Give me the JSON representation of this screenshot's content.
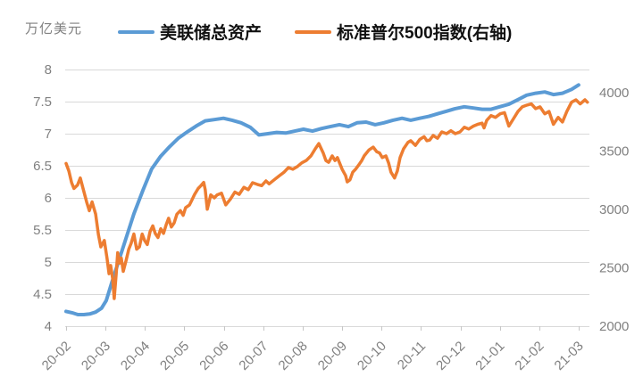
{
  "chart_data": {
    "type": "line",
    "unit_label": "万亿美元",
    "categories": [
      "20-02",
      "20-03",
      "20-04",
      "20-05",
      "20-06",
      "20-07",
      "20-08",
      "20-09",
      "20-10",
      "20-11",
      "20-12",
      "21-01",
      "21-02",
      "21-03"
    ],
    "left_axis": {
      "min": 4,
      "max": 8,
      "tick_step": 0.5,
      "tick_values": [
        4,
        4.5,
        5,
        5.5,
        6,
        6.5,
        7,
        7.5,
        8
      ],
      "tick_labels": [
        "4",
        "4.5",
        "5",
        "5.5",
        "6",
        "6.5",
        "7",
        "7.5",
        "8"
      ]
    },
    "right_axis": {
      "min": 2000,
      "max": 4200,
      "tick_values": [
        2000,
        2500,
        3000,
        3500,
        4000
      ],
      "tick_labels": [
        "2000",
        "2500",
        "3000",
        "3500",
        "4000"
      ]
    },
    "grid_color": "#D9D9D9",
    "axis_line_color": "#D9D9D9",
    "tick_mark_color": "#C6C6C6",
    "axis_text_color": "#808080",
    "legend_position": "top",
    "grid": "horizontal-only",
    "series": [
      {
        "name": "美联储总资产",
        "axis": "left",
        "color": "#5B9BD5",
        "stroke_width": 4,
        "points": [
          [
            0,
            4.23
          ],
          [
            0.15,
            4.21
          ],
          [
            0.3,
            4.18
          ],
          [
            0.45,
            4.18
          ],
          [
            0.6,
            4.19
          ],
          [
            0.75,
            4.22
          ],
          [
            0.9,
            4.28
          ],
          [
            1.02,
            4.4
          ],
          [
            1.16,
            4.68
          ],
          [
            1.3,
            4.95
          ],
          [
            1.5,
            5.33
          ],
          [
            1.72,
            5.75
          ],
          [
            1.95,
            6.12
          ],
          [
            2.17,
            6.45
          ],
          [
            2.4,
            6.65
          ],
          [
            2.63,
            6.8
          ],
          [
            2.85,
            6.93
          ],
          [
            3.08,
            7.03
          ],
          [
            3.3,
            7.12
          ],
          [
            3.53,
            7.2
          ],
          [
            3.76,
            7.22
          ],
          [
            3.99,
            7.24
          ],
          [
            4.21,
            7.21
          ],
          [
            4.44,
            7.17
          ],
          [
            4.67,
            7.1
          ],
          [
            4.89,
            6.98
          ],
          [
            5.12,
            7.0
          ],
          [
            5.34,
            7.02
          ],
          [
            5.57,
            7.01
          ],
          [
            5.8,
            7.04
          ],
          [
            6.02,
            7.07
          ],
          [
            6.25,
            7.04
          ],
          [
            6.48,
            7.08
          ],
          [
            6.7,
            7.11
          ],
          [
            6.93,
            7.14
          ],
          [
            7.16,
            7.11
          ],
          [
            7.38,
            7.17
          ],
          [
            7.61,
            7.18
          ],
          [
            7.84,
            7.14
          ],
          [
            8.06,
            7.17
          ],
          [
            8.29,
            7.21
          ],
          [
            8.52,
            7.24
          ],
          [
            8.74,
            7.21
          ],
          [
            8.97,
            7.24
          ],
          [
            9.2,
            7.27
          ],
          [
            9.42,
            7.31
          ],
          [
            9.65,
            7.35
          ],
          [
            9.87,
            7.39
          ],
          [
            10.1,
            7.42
          ],
          [
            10.33,
            7.4
          ],
          [
            10.55,
            7.38
          ],
          [
            10.78,
            7.38
          ],
          [
            11.0,
            7.42
          ],
          [
            11.23,
            7.46
          ],
          [
            11.46,
            7.53
          ],
          [
            11.68,
            7.6
          ],
          [
            11.91,
            7.63
          ],
          [
            12.14,
            7.65
          ],
          [
            12.36,
            7.61
          ],
          [
            12.59,
            7.63
          ],
          [
            12.82,
            7.69
          ],
          [
            13.0,
            7.76
          ]
        ]
      },
      {
        "name": "标准普尔500指数(右轴)",
        "axis": "right",
        "color": "#ED7D31",
        "stroke_width": 3.5,
        "points": [
          [
            0,
            3395
          ],
          [
            0.07,
            3330
          ],
          [
            0.14,
            3230
          ],
          [
            0.2,
            3180
          ],
          [
            0.29,
            3210
          ],
          [
            0.36,
            3270
          ],
          [
            0.43,
            3180
          ],
          [
            0.52,
            3065
          ],
          [
            0.59,
            2990
          ],
          [
            0.66,
            3065
          ],
          [
            0.75,
            2960
          ],
          [
            0.82,
            2785
          ],
          [
            0.88,
            2680
          ],
          [
            0.97,
            2735
          ],
          [
            1.04,
            2580
          ],
          [
            1.09,
            2450
          ],
          [
            1.13,
            2520
          ],
          [
            1.18,
            2410
          ],
          [
            1.22,
            2237
          ],
          [
            1.27,
            2447
          ],
          [
            1.31,
            2630
          ],
          [
            1.36,
            2540
          ],
          [
            1.4,
            2584
          ],
          [
            1.45,
            2470
          ],
          [
            1.52,
            2560
          ],
          [
            1.59,
            2660
          ],
          [
            1.65,
            2710
          ],
          [
            1.72,
            2790
          ],
          [
            1.79,
            2660
          ],
          [
            1.86,
            2680
          ],
          [
            1.93,
            2790
          ],
          [
            1.99,
            2735
          ],
          [
            2.06,
            2700
          ],
          [
            2.13,
            2810
          ],
          [
            2.2,
            2860
          ],
          [
            2.26,
            2795
          ],
          [
            2.33,
            2760
          ],
          [
            2.4,
            2835
          ],
          [
            2.47,
            2795
          ],
          [
            2.54,
            2870
          ],
          [
            2.6,
            2925
          ],
          [
            2.67,
            2850
          ],
          [
            2.74,
            2885
          ],
          [
            2.81,
            2960
          ],
          [
            2.9,
            2990
          ],
          [
            2.97,
            2950
          ],
          [
            3.03,
            3015
          ],
          [
            3.13,
            3040
          ],
          [
            3.19,
            3080
          ],
          [
            3.26,
            3130
          ],
          [
            3.35,
            3180
          ],
          [
            3.42,
            3205
          ],
          [
            3.49,
            3232
          ],
          [
            3.53,
            3170
          ],
          [
            3.58,
            3002
          ],
          [
            3.67,
            3125
          ],
          [
            3.76,
            3100
          ],
          [
            3.83,
            3125
          ],
          [
            3.94,
            3140
          ],
          [
            4.05,
            3040
          ],
          [
            4.17,
            3090
          ],
          [
            4.28,
            3150
          ],
          [
            4.39,
            3130
          ],
          [
            4.51,
            3190
          ],
          [
            4.62,
            3170
          ],
          [
            4.73,
            3230
          ],
          [
            4.85,
            3215
          ],
          [
            4.96,
            3205
          ],
          [
            5.07,
            3245
          ],
          [
            5.15,
            3220
          ],
          [
            5.28,
            3255
          ],
          [
            5.41,
            3290
          ],
          [
            5.53,
            3320
          ],
          [
            5.64,
            3360
          ],
          [
            5.75,
            3345
          ],
          [
            5.87,
            3370
          ],
          [
            5.98,
            3400
          ],
          [
            6.09,
            3420
          ],
          [
            6.21,
            3460
          ],
          [
            6.32,
            3520
          ],
          [
            6.41,
            3565
          ],
          [
            6.52,
            3485
          ],
          [
            6.59,
            3420
          ],
          [
            6.66,
            3405
          ],
          [
            6.75,
            3460
          ],
          [
            6.82,
            3420
          ],
          [
            6.88,
            3445
          ],
          [
            7.0,
            3345
          ],
          [
            7.09,
            3290
          ],
          [
            7.13,
            3237
          ],
          [
            7.2,
            3255
          ],
          [
            7.27,
            3320
          ],
          [
            7.34,
            3345
          ],
          [
            7.43,
            3385
          ],
          [
            7.5,
            3420
          ],
          [
            7.56,
            3460
          ],
          [
            7.68,
            3510
          ],
          [
            7.79,
            3535
          ],
          [
            7.88,
            3495
          ],
          [
            7.95,
            3485
          ],
          [
            8.02,
            3445
          ],
          [
            8.11,
            3460
          ],
          [
            8.18,
            3400
          ],
          [
            8.24,
            3320
          ],
          [
            8.33,
            3270
          ],
          [
            8.4,
            3330
          ],
          [
            8.47,
            3445
          ],
          [
            8.56,
            3520
          ],
          [
            8.67,
            3575
          ],
          [
            8.74,
            3590
          ],
          [
            8.86,
            3550
          ],
          [
            8.97,
            3600
          ],
          [
            9.08,
            3625
          ],
          [
            9.15,
            3590
          ],
          [
            9.22,
            3595
          ],
          [
            9.31,
            3635
          ],
          [
            9.42,
            3610
          ],
          [
            9.53,
            3665
          ],
          [
            9.65,
            3650
          ],
          [
            9.76,
            3675
          ],
          [
            9.87,
            3650
          ],
          [
            9.99,
            3665
          ],
          [
            10.1,
            3705
          ],
          [
            10.21,
            3690
          ],
          [
            10.33,
            3715
          ],
          [
            10.44,
            3730
          ],
          [
            10.55,
            3740
          ],
          [
            10.6,
            3700
          ],
          [
            10.67,
            3765
          ],
          [
            10.78,
            3805
          ],
          [
            10.89,
            3790
          ],
          [
            11.01,
            3820
          ],
          [
            11.12,
            3830
          ],
          [
            11.23,
            3715
          ],
          [
            11.35,
            3780
          ],
          [
            11.46,
            3840
          ],
          [
            11.57,
            3880
          ],
          [
            11.69,
            3895
          ],
          [
            11.8,
            3905
          ],
          [
            11.91,
            3865
          ],
          [
            12.02,
            3880
          ],
          [
            12.14,
            3820
          ],
          [
            12.25,
            3840
          ],
          [
            12.36,
            3730
          ],
          [
            12.48,
            3790
          ],
          [
            12.59,
            3750
          ],
          [
            12.7,
            3840
          ],
          [
            12.82,
            3920
          ],
          [
            12.93,
            3940
          ],
          [
            13.04,
            3905
          ],
          [
            13.16,
            3940
          ],
          [
            13.22,
            3920
          ]
        ]
      }
    ]
  }
}
